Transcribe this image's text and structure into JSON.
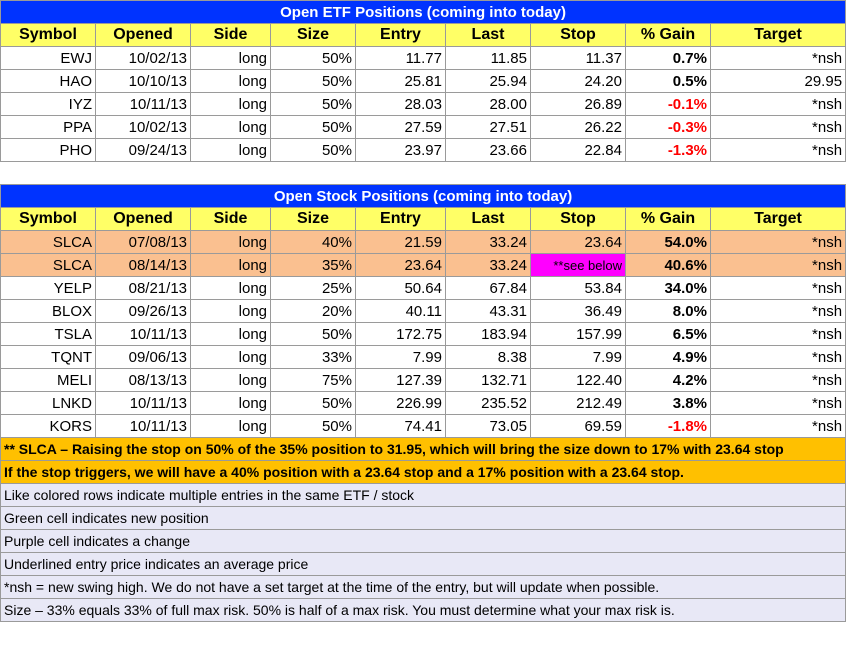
{
  "etf_table": {
    "title": "Open ETF Positions (coming into today)",
    "headers": [
      "Symbol",
      "Opened",
      "Side",
      "Size",
      "Entry",
      "Last",
      "Stop",
      "% Gain",
      "Target"
    ],
    "rows": [
      [
        "EWJ",
        "10/02/13",
        "long",
        "50%",
        "11.77",
        "11.85",
        "11.37",
        "0.7%",
        "*nsh"
      ],
      [
        "HAO",
        "10/10/13",
        "long",
        "50%",
        "25.81",
        "25.94",
        "24.20",
        "0.5%",
        "29.95"
      ],
      [
        "IYZ",
        "10/11/13",
        "long",
        "50%",
        "28.03",
        "28.00",
        "26.89",
        "-0.1%",
        "*nsh"
      ],
      [
        "PPA",
        "10/02/13",
        "long",
        "50%",
        "27.59",
        "27.51",
        "26.22",
        "-0.3%",
        "*nsh"
      ],
      [
        "PHO",
        "09/24/13",
        "long",
        "50%",
        "23.97",
        "23.66",
        "22.84",
        "-1.3%",
        "*nsh"
      ]
    ]
  },
  "stock_table": {
    "title": "Open Stock Positions (coming into today)",
    "headers": [
      "Symbol",
      "Opened",
      "Side",
      "Size",
      "Entry",
      "Last",
      "Stop",
      "% Gain",
      "Target"
    ],
    "rows": [
      [
        "SLCA",
        "07/08/13",
        "long",
        "40%",
        "21.59",
        "33.24",
        "23.64",
        "54.0%",
        "*nsh"
      ],
      [
        "SLCA",
        "08/14/13",
        "long",
        "35%",
        "23.64",
        "33.24",
        "**see below",
        "40.6%",
        "*nsh"
      ],
      [
        "YELP",
        "08/21/13",
        "long",
        "25%",
        "50.64",
        "67.84",
        "53.84",
        "34.0%",
        "*nsh"
      ],
      [
        "BLOX",
        "09/26/13",
        "long",
        "20%",
        "40.11",
        "43.31",
        "36.49",
        "8.0%",
        "*nsh"
      ],
      [
        "TSLA",
        "10/11/13",
        "long",
        "50%",
        "172.75",
        "183.94",
        "157.99",
        "6.5%",
        "*nsh"
      ],
      [
        "TQNT",
        "09/06/13",
        "long",
        "33%",
        "7.99",
        "8.38",
        "7.99",
        "4.9%",
        "*nsh"
      ],
      [
        "MELI",
        "08/13/13",
        "long",
        "75%",
        "127.39",
        "132.71",
        "122.40",
        "4.2%",
        "*nsh"
      ],
      [
        "LNKD",
        "10/11/13",
        "long",
        "50%",
        "226.99",
        "235.52",
        "212.49",
        "3.8%",
        "*nsh"
      ],
      [
        "KORS",
        "10/11/13",
        "long",
        "50%",
        "74.41",
        "73.05",
        "69.59",
        "-1.8%",
        "*nsh"
      ]
    ]
  },
  "notes": [
    "** SLCA – Raising the stop on 50% of the 35% position to 31.95, which will bring the size down to 17% with 23.64 stop",
    "If the stop triggers, we will have a 40% position with a 23.64 stop and a 17% position with a 23.64 stop."
  ],
  "legend": [
    "Like colored rows indicate multiple entries in the same ETF / stock",
    "Green cell indicates new position",
    "Purple cell indicates a change",
    "Underlined entry price indicates an average price",
    "*nsh = new swing high.  We do not have a set target at the time of the entry, but will update when possible.",
    "Size – 33% equals 33% of full max risk.  50% is half of a max risk. You must determine what your max risk is."
  ]
}
